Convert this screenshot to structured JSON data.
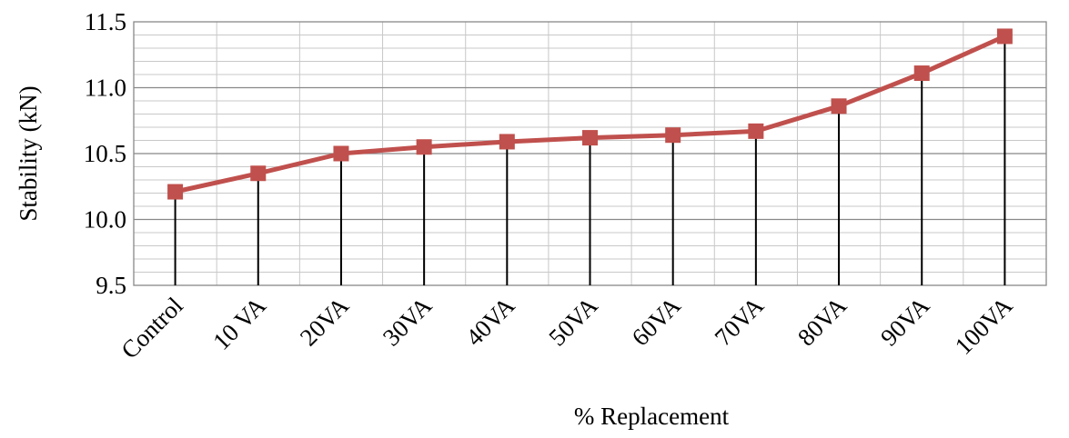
{
  "chart_data": {
    "type": "line",
    "title": "",
    "xlabel": "% Replacement",
    "ylabel": "Stability (kN)",
    "categories": [
      "Control",
      "10 VA",
      "20VA",
      "30VA",
      "40VA",
      "50VA",
      "60VA",
      "70VA",
      "80VA",
      "90VA",
      "100VA"
    ],
    "series": [
      {
        "name": "",
        "values": [
          10.21,
          10.35,
          10.5,
          10.55,
          10.59,
          10.62,
          10.64,
          10.67,
          10.86,
          11.11,
          11.39
        ],
        "color": "#c0504d",
        "marker": "square"
      }
    ],
    "ylim": [
      9.5,
      11.5
    ],
    "y_ticks": [
      "9.5",
      "10.0",
      "10.5",
      "11.0",
      "11.5"
    ],
    "y_major_step": 0.5,
    "y_minor_step": 0.1,
    "drop_lines": true,
    "grid": true,
    "legend": "none",
    "colors": {
      "line": "#c0504d",
      "marker_fill": "#c0504d",
      "marker_edge": "#c0504d",
      "grid_major": "#888888",
      "grid_minor": "#c8c8c8",
      "drop_line": "#000000"
    }
  }
}
